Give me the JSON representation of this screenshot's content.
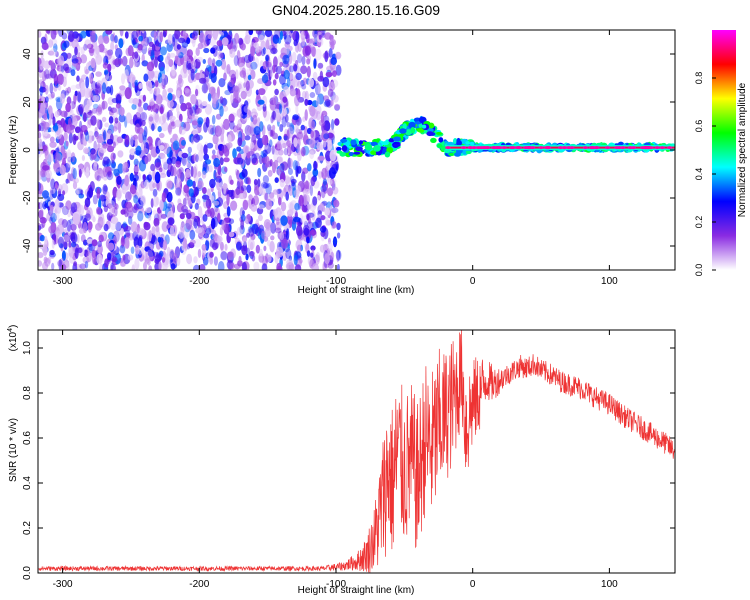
{
  "title": "GN04.2025.280.15.16.G09",
  "colors": {
    "series_line": "#ee3333",
    "axis": "#000000"
  },
  "chart_data": [
    {
      "type": "heatmap",
      "name": "spectrogram",
      "xlabel": "Height of straight line (km)",
      "ylabel": "Frequency (Hz)",
      "xlim": [
        -318,
        148
      ],
      "ylim": [
        -50,
        50
      ],
      "xticks": [
        -300,
        -200,
        -100,
        0,
        100
      ],
      "xtick_labels": [
        "-300",
        "-200",
        "-100",
        "0",
        "100"
      ],
      "yticks": [
        -40,
        -20,
        0,
        20,
        40
      ],
      "ytick_labels": [
        "-40",
        "-20",
        "0",
        "20",
        "40"
      ],
      "colorbar": {
        "label": "Normalized spectral amplitude",
        "range": [
          0,
          1
        ],
        "ticks": [
          0.0,
          0.2,
          0.4,
          0.6,
          0.8
        ],
        "tick_labels": [
          "0.0",
          "0.2",
          "0.4",
          "0.6",
          "0.8"
        ],
        "stops": [
          "#ffffff",
          "#8a2be2",
          "#0000ff",
          "#00ffff",
          "#00ff00",
          "#ffff00",
          "#ff0000",
          "#ff00ff"
        ]
      },
      "regions": [
        {
          "name": "noise",
          "x_from": -318,
          "x_to": -98,
          "freq_from": -50,
          "freq_to": 50,
          "amplitude": 0.15
        },
        {
          "name": "signal",
          "x_from": -98,
          "x_to": 148,
          "center_freq_hz": 1,
          "amplitude": 0.9
        }
      ]
    },
    {
      "type": "line",
      "name": "snr",
      "xlabel": "Height of straight line (km)",
      "ylabel": "SNR (10 * v/v)",
      "y_multiplier_label": "(x10",
      "y_multiplier_exp": "4",
      "y_multiplier_close": ")",
      "xlim": [
        -318,
        148
      ],
      "ylim": [
        0,
        1.08
      ],
      "xticks": [
        -300,
        -200,
        -100,
        0,
        100
      ],
      "xtick_labels": [
        "-300",
        "-200",
        "-100",
        "0",
        "100"
      ],
      "yticks": [
        0.0,
        0.2,
        0.4,
        0.6,
        0.8,
        1.0
      ],
      "ytick_labels": [
        "0.0",
        "0.2",
        "0.4",
        "0.6",
        "0.8",
        "1.0"
      ],
      "series": [
        {
          "name": "SNR",
          "x": [
            -318,
            -250,
            -200,
            -150,
            -110,
            -95,
            -85,
            -78,
            -72,
            -68,
            -65,
            -62,
            -58,
            -55,
            -50,
            -45,
            -40,
            -35,
            -30,
            -25,
            -20,
            -15,
            -10,
            -8,
            -5,
            0,
            5,
            10,
            15,
            20,
            25,
            30,
            35,
            40,
            45,
            50,
            55,
            60,
            65,
            70,
            80,
            90,
            100,
            110,
            120,
            130,
            140,
            148
          ],
          "y": [
            0.02,
            0.02,
            0.02,
            0.02,
            0.02,
            0.03,
            0.05,
            0.08,
            0.15,
            0.25,
            0.35,
            0.45,
            0.4,
            0.55,
            0.45,
            0.5,
            0.4,
            0.6,
            0.55,
            0.65,
            0.7,
            0.75,
            0.85,
            0.9,
            0.65,
            0.75,
            0.8,
            0.86,
            0.84,
            0.86,
            0.88,
            0.9,
            0.92,
            0.91,
            0.93,
            0.9,
            0.89,
            0.87,
            0.85,
            0.84,
            0.82,
            0.78,
            0.75,
            0.7,
            0.66,
            0.62,
            0.58,
            0.54
          ],
          "noise_amplitude": [
            0.01,
            0.01,
            0.01,
            0.01,
            0.01,
            0.02,
            0.04,
            0.08,
            0.15,
            0.25,
            0.3,
            0.35,
            0.35,
            0.35,
            0.35,
            0.35,
            0.35,
            0.35,
            0.35,
            0.35,
            0.3,
            0.3,
            0.25,
            0.2,
            0.3,
            0.2,
            0.18,
            0.1,
            0.08,
            0.06,
            0.05,
            0.05,
            0.05,
            0.05,
            0.05,
            0.05,
            0.05,
            0.05,
            0.05,
            0.05,
            0.05,
            0.05,
            0.05,
            0.05,
            0.05,
            0.05,
            0.05,
            0.05
          ]
        }
      ]
    }
  ]
}
